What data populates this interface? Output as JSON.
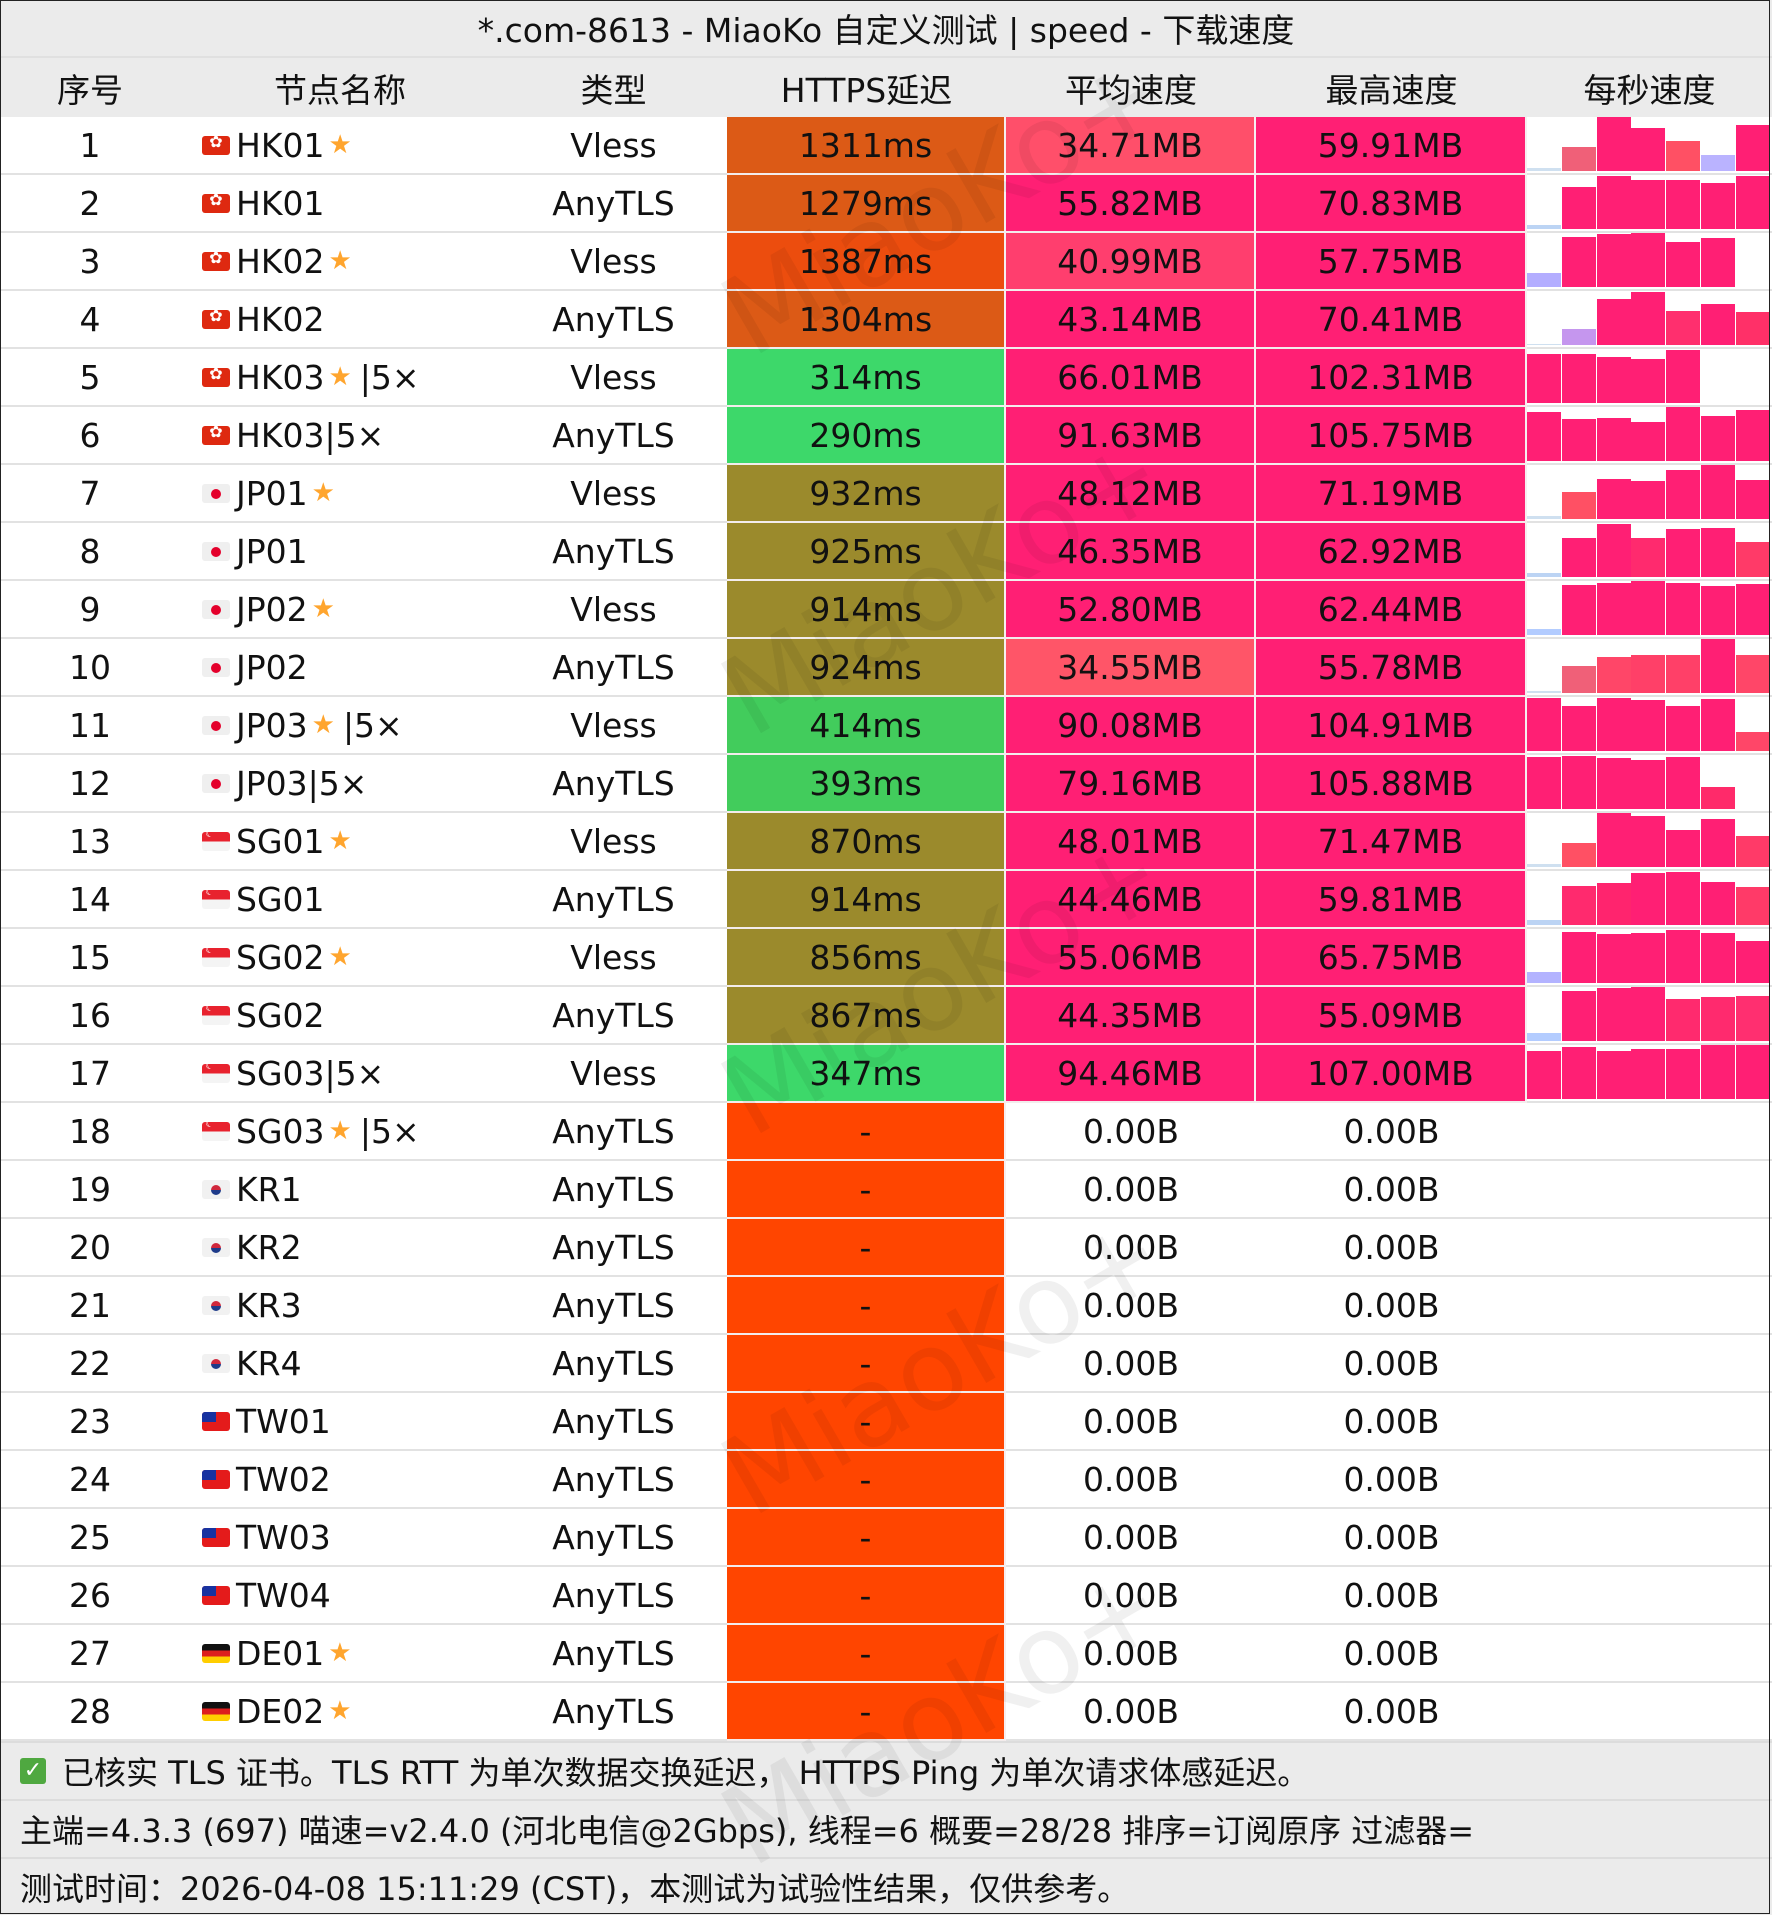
{
  "title": "*.com-8613 - MiaoKo 自定义测试 | speed - 下载速度",
  "columns": [
    "序号",
    "节点名称",
    "类型",
    "HTTPS延迟",
    "平均速度",
    "最高速度",
    "每秒速度"
  ],
  "colors": {
    "latency_very_high": "#dc5a16",
    "latency_highest": "#ec4d0e",
    "latency_medium": "#9b8a2c",
    "latency_low": "#3dd86a",
    "latency_low_alt": "#42cc5c",
    "latency_fail": "#ff4500",
    "speed_high": "#ff1f74",
    "speed_mid": "#ff4f6a",
    "spark_low": "#bab3ff",
    "spark_base": "#cfe0f0"
  },
  "rows": [
    {
      "idx": "1",
      "flag": "hk",
      "name": "HK01",
      "star": true,
      "suffix": "",
      "type": "Vless",
      "latency": "1311ms",
      "lat_color": "#dc5a16",
      "avg": "34.71MB",
      "avg_color": "#ff4f6a",
      "max": "59.91MB",
      "max_color": "#ff1f74",
      "spark": [
        [
          0.05,
          "#cfe0f0"
        ],
        [
          0.45,
          "#f06078"
        ],
        [
          1.0,
          "#ff1f74"
        ],
        [
          0.8,
          "#ff1f74"
        ],
        [
          0.55,
          "#ff5064"
        ],
        [
          0.3,
          "#bab3ff"
        ],
        [
          0.85,
          "#ff1f74"
        ]
      ]
    },
    {
      "idx": "2",
      "flag": "hk",
      "name": "HK01",
      "star": false,
      "suffix": "",
      "type": "AnyTLS",
      "latency": "1279ms",
      "lat_color": "#dc5a16",
      "avg": "55.82MB",
      "avg_color": "#ff1f74",
      "max": "70.83MB",
      "max_color": "#ff1f74",
      "spark": [
        [
          0.08,
          "#bcd4f4"
        ],
        [
          0.78,
          "#ff1f74"
        ],
        [
          0.98,
          "#ff1f74"
        ],
        [
          0.9,
          "#ff1f74"
        ],
        [
          0.9,
          "#ff1f74"
        ],
        [
          0.85,
          "#ff1f74"
        ],
        [
          0.98,
          "#ff1f74"
        ]
      ]
    },
    {
      "idx": "3",
      "flag": "hk",
      "name": "HK02",
      "star": true,
      "suffix": "",
      "type": "Vless",
      "latency": "1387ms",
      "lat_color": "#ec4d0e",
      "avg": "40.99MB",
      "avg_color": "#ff3e6e",
      "max": "57.75MB",
      "max_color": "#ff1f74",
      "spark": [
        [
          0.25,
          "#b3adff"
        ],
        [
          0.92,
          "#ff1f74"
        ],
        [
          0.98,
          "#ff1f74"
        ],
        [
          1.0,
          "#ff1f74"
        ],
        [
          0.84,
          "#ff1f74"
        ],
        [
          0.9,
          "#ff1f74"
        ],
        [
          0,
          "#ffffff"
        ]
      ]
    },
    {
      "idx": "4",
      "flag": "hk",
      "name": "HK02",
      "star": false,
      "suffix": "",
      "type": "AnyTLS",
      "latency": "1304ms",
      "lat_color": "#dc5a16",
      "avg": "43.14MB",
      "avg_color": "#ff1f74",
      "max": "70.41MB",
      "max_color": "#ff1f74",
      "spark": [
        [
          0.02,
          "#cfe0f0"
        ],
        [
          0.3,
          "#c596ee"
        ],
        [
          0.85,
          "#ff1f74"
        ],
        [
          0.98,
          "#ff1f74"
        ],
        [
          0.63,
          "#ff2f6e"
        ],
        [
          0.76,
          "#ff1f74"
        ],
        [
          0.62,
          "#ff3068"
        ]
      ]
    },
    {
      "idx": "5",
      "flag": "hk",
      "name": "HK03",
      "star": true,
      "suffix": "|5×",
      "type": "Vless",
      "latency": "314ms",
      "lat_color": "#3dd86a",
      "avg": "66.01MB",
      "avg_color": "#ff1f74",
      "max": "102.31MB",
      "max_color": "#ff1f74",
      "spark": [
        [
          0.9,
          "#ff1f74"
        ],
        [
          0.9,
          "#ff1f74"
        ],
        [
          0.86,
          "#ff1f74"
        ],
        [
          0.82,
          "#ff1f74"
        ],
        [
          0.98,
          "#ff1f74"
        ],
        [
          0,
          "#ffffff"
        ],
        [
          0,
          "#ffffff"
        ]
      ]
    },
    {
      "idx": "6",
      "flag": "hk",
      "name": "HK03",
      "star": false,
      "suffix": "|5×",
      "type": "AnyTLS",
      "latency": "290ms",
      "lat_color": "#3dd86a",
      "avg": "91.63MB",
      "avg_color": "#ff1f74",
      "max": "105.75MB",
      "max_color": "#ff1f74",
      "spark": [
        [
          0.9,
          "#ff1f74"
        ],
        [
          0.78,
          "#ff1f74"
        ],
        [
          0.8,
          "#ff1f74"
        ],
        [
          0.72,
          "#ff1f74"
        ],
        [
          1.0,
          "#ff1f74"
        ],
        [
          0.84,
          "#ff1f74"
        ],
        [
          0.94,
          "#ff1f74"
        ]
      ]
    },
    {
      "idx": "7",
      "flag": "jp",
      "name": "JP01",
      "star": true,
      "suffix": "",
      "type": "Vless",
      "latency": "932ms",
      "lat_color": "#9b8a2c",
      "avg": "48.12MB",
      "avg_color": "#ff1f74",
      "max": "71.19MB",
      "max_color": "#ff1f74",
      "spark": [
        [
          0.06,
          "#cfe0f0"
        ],
        [
          0.5,
          "#ff5064"
        ],
        [
          0.74,
          "#ff1f74"
        ],
        [
          0.7,
          "#ff1f74"
        ],
        [
          0.9,
          "#ff1f74"
        ],
        [
          1.0,
          "#ff1f74"
        ],
        [
          0.72,
          "#ff1f74"
        ]
      ]
    },
    {
      "idx": "8",
      "flag": "jp",
      "name": "JP01",
      "star": false,
      "suffix": "",
      "type": "AnyTLS",
      "latency": "925ms",
      "lat_color": "#9b8a2c",
      "avg": "46.35MB",
      "avg_color": "#ff1f74",
      "max": "62.92MB",
      "max_color": "#ff1f74",
      "spark": [
        [
          0.08,
          "#bcd4f4"
        ],
        [
          0.73,
          "#ff1f74"
        ],
        [
          0.98,
          "#ff1f74"
        ],
        [
          0.73,
          "#ff2a6e"
        ],
        [
          0.88,
          "#ff1f74"
        ],
        [
          0.9,
          "#ff1f74"
        ],
        [
          0.64,
          "#ff3a68"
        ]
      ]
    },
    {
      "idx": "9",
      "flag": "jp",
      "name": "JP02",
      "star": true,
      "suffix": "",
      "type": "Vless",
      "latency": "914ms",
      "lat_color": "#9b8a2c",
      "avg": "52.80MB",
      "avg_color": "#ff1f74",
      "max": "62.44MB",
      "max_color": "#ff1f74",
      "spark": [
        [
          0.12,
          "#b3ccff"
        ],
        [
          0.92,
          "#ff1f74"
        ],
        [
          0.97,
          "#ff1f74"
        ],
        [
          1.0,
          "#ff1f74"
        ],
        [
          0.96,
          "#ff1f74"
        ],
        [
          0.9,
          "#ff1f74"
        ],
        [
          0.95,
          "#ff1f74"
        ]
      ]
    },
    {
      "idx": "10",
      "flag": "jp",
      "name": "JP02",
      "star": false,
      "suffix": "",
      "type": "AnyTLS",
      "latency": "924ms",
      "lat_color": "#9b8a2c",
      "avg": "34.55MB",
      "avg_color": "#ff5568",
      "max": "55.78MB",
      "max_color": "#ff1f74",
      "spark": [
        [
          0.04,
          "#cfe0f0"
        ],
        [
          0.5,
          "#f06078"
        ],
        [
          0.67,
          "#ff4668"
        ],
        [
          0.7,
          "#ff4068"
        ],
        [
          0.7,
          "#ff4068"
        ],
        [
          1.0,
          "#ff1f74"
        ],
        [
          0.7,
          "#ff4668"
        ]
      ]
    },
    {
      "idx": "11",
      "flag": "jp",
      "name": "JP03",
      "star": true,
      "suffix": "|5×",
      "type": "Vless",
      "latency": "414ms",
      "lat_color": "#42cc5c",
      "avg": "90.08MB",
      "avg_color": "#ff1f74",
      "max": "104.91MB",
      "max_color": "#ff1f74",
      "spark": [
        [
          0.98,
          "#ff1f74"
        ],
        [
          0.84,
          "#ff1f74"
        ],
        [
          0.98,
          "#ff1f74"
        ],
        [
          0.95,
          "#ff1f74"
        ],
        [
          0.84,
          "#ff1f74"
        ],
        [
          0.96,
          "#ff1f74"
        ],
        [
          0.35,
          "#ff4668"
        ]
      ]
    },
    {
      "idx": "12",
      "flag": "jp",
      "name": "JP03",
      "star": false,
      "suffix": "|5×",
      "type": "AnyTLS",
      "latency": "393ms",
      "lat_color": "#42cc5c",
      "avg": "79.16MB",
      "avg_color": "#ff1f74",
      "max": "105.88MB",
      "max_color": "#ff1f74",
      "spark": [
        [
          0.97,
          "#ff1f74"
        ],
        [
          0.98,
          "#ff1f74"
        ],
        [
          0.94,
          "#ff1f74"
        ],
        [
          0.9,
          "#ff1f74"
        ],
        [
          0.97,
          "#ff1f74"
        ],
        [
          0.4,
          "#ff2a6a"
        ],
        [
          0,
          "#ffffff"
        ]
      ]
    },
    {
      "idx": "13",
      "flag": "sg",
      "name": "SG01",
      "star": true,
      "suffix": "",
      "type": "Vless",
      "latency": "870ms",
      "lat_color": "#9b8a2c",
      "avg": "48.01MB",
      "avg_color": "#ff1f74",
      "max": "71.47MB",
      "max_color": "#ff1f74",
      "spark": [
        [
          0.05,
          "#cfe0f0"
        ],
        [
          0.45,
          "#ff5064"
        ],
        [
          1.0,
          "#ff1f74"
        ],
        [
          0.95,
          "#ff1f74"
        ],
        [
          0.68,
          "#ff1f74"
        ],
        [
          0.88,
          "#ff1f74"
        ],
        [
          0.58,
          "#ff3a68"
        ]
      ]
    },
    {
      "idx": "14",
      "flag": "sg",
      "name": "SG01",
      "star": false,
      "suffix": "",
      "type": "AnyTLS",
      "latency": "914ms",
      "lat_color": "#9b8a2c",
      "avg": "44.46MB",
      "avg_color": "#ff1f74",
      "max": "59.81MB",
      "max_color": "#ff1f74",
      "spark": [
        [
          0.1,
          "#bcd4f4"
        ],
        [
          0.73,
          "#ff2a6e"
        ],
        [
          0.78,
          "#ff246e"
        ],
        [
          0.96,
          "#ff1f74"
        ],
        [
          0.98,
          "#ff1f74"
        ],
        [
          0.8,
          "#ff1f74"
        ],
        [
          0.7,
          "#ff3a68"
        ]
      ]
    },
    {
      "idx": "15",
      "flag": "sg",
      "name": "SG02",
      "star": true,
      "suffix": "",
      "type": "Vless",
      "latency": "856ms",
      "lat_color": "#9b8a2c",
      "avg": "55.06MB",
      "avg_color": "#ff1f74",
      "max": "65.75MB",
      "max_color": "#ff1f74",
      "spark": [
        [
          0.2,
          "#b3b3ff"
        ],
        [
          0.95,
          "#ff1f74"
        ],
        [
          0.9,
          "#ff1f74"
        ],
        [
          0.92,
          "#ff1f74"
        ],
        [
          0.98,
          "#ff1f74"
        ],
        [
          0.92,
          "#ff1f74"
        ],
        [
          0.78,
          "#ff1f74"
        ]
      ]
    },
    {
      "idx": "16",
      "flag": "sg",
      "name": "SG02",
      "star": false,
      "suffix": "",
      "type": "AnyTLS",
      "latency": "867ms",
      "lat_color": "#9b8a2c",
      "avg": "44.35MB",
      "avg_color": "#ff1f74",
      "max": "55.09MB",
      "max_color": "#ff1f74",
      "spark": [
        [
          0.14,
          "#b3ccff"
        ],
        [
          0.92,
          "#ff1f74"
        ],
        [
          0.98,
          "#ff1f74"
        ],
        [
          1.0,
          "#ff1f74"
        ],
        [
          0.77,
          "#ff2a6e"
        ],
        [
          0.82,
          "#ff2a6e"
        ],
        [
          0.84,
          "#ff2f70"
        ]
      ]
    },
    {
      "idx": "17",
      "flag": "sg",
      "name": "SG03",
      "star": false,
      "suffix": "|5×",
      "type": "Vless",
      "latency": "347ms",
      "lat_color": "#3dd86a",
      "avg": "94.46MB",
      "avg_color": "#ff1f74",
      "max": "107.00MB",
      "max_color": "#ff1f74",
      "spark": [
        [
          0.88,
          "#ff1f74"
        ],
        [
          0.97,
          "#ff1f74"
        ],
        [
          0.88,
          "#ff1f74"
        ],
        [
          0.92,
          "#ff1f74"
        ],
        [
          0.92,
          "#ff1f74"
        ],
        [
          1.0,
          "#ff1f74"
        ],
        [
          1.0,
          "#ff1f74"
        ]
      ]
    },
    {
      "idx": "18",
      "flag": "sg",
      "name": "SG03",
      "star": true,
      "suffix": "|5×",
      "type": "AnyTLS",
      "latency": "-",
      "lat_color": "#ff4500",
      "avg": "0.00B",
      "avg_color": "",
      "max": "0.00B",
      "max_color": "",
      "spark": []
    },
    {
      "idx": "19",
      "flag": "kr",
      "name": "KR1",
      "star": false,
      "suffix": "",
      "type": "AnyTLS",
      "latency": "-",
      "lat_color": "#ff4500",
      "avg": "0.00B",
      "avg_color": "",
      "max": "0.00B",
      "max_color": "",
      "spark": []
    },
    {
      "idx": "20",
      "flag": "kr",
      "name": "KR2",
      "star": false,
      "suffix": "",
      "type": "AnyTLS",
      "latency": "-",
      "lat_color": "#ff4500",
      "avg": "0.00B",
      "avg_color": "",
      "max": "0.00B",
      "max_color": "",
      "spark": []
    },
    {
      "idx": "21",
      "flag": "kr",
      "name": "KR3",
      "star": false,
      "suffix": "",
      "type": "AnyTLS",
      "latency": "-",
      "lat_color": "#ff4500",
      "avg": "0.00B",
      "avg_color": "",
      "max": "0.00B",
      "max_color": "",
      "spark": []
    },
    {
      "idx": "22",
      "flag": "kr",
      "name": "KR4",
      "star": false,
      "suffix": "",
      "type": "AnyTLS",
      "latency": "-",
      "lat_color": "#ff4500",
      "avg": "0.00B",
      "avg_color": "",
      "max": "0.00B",
      "max_color": "",
      "spark": []
    },
    {
      "idx": "23",
      "flag": "tw",
      "name": "TW01",
      "star": false,
      "suffix": "",
      "type": "AnyTLS",
      "latency": "-",
      "lat_color": "#ff4500",
      "avg": "0.00B",
      "avg_color": "",
      "max": "0.00B",
      "max_color": "",
      "spark": []
    },
    {
      "idx": "24",
      "flag": "tw",
      "name": "TW02",
      "star": false,
      "suffix": "",
      "type": "AnyTLS",
      "latency": "-",
      "lat_color": "#ff4500",
      "avg": "0.00B",
      "avg_color": "",
      "max": "0.00B",
      "max_color": "",
      "spark": []
    },
    {
      "idx": "25",
      "flag": "tw",
      "name": "TW03",
      "star": false,
      "suffix": "",
      "type": "AnyTLS",
      "latency": "-",
      "lat_color": "#ff4500",
      "avg": "0.00B",
      "avg_color": "",
      "max": "0.00B",
      "max_color": "",
      "spark": []
    },
    {
      "idx": "26",
      "flag": "tw",
      "name": "TW04",
      "star": false,
      "suffix": "",
      "type": "AnyTLS",
      "latency": "-",
      "lat_color": "#ff4500",
      "avg": "0.00B",
      "avg_color": "",
      "max": "0.00B",
      "max_color": "",
      "spark": []
    },
    {
      "idx": "27",
      "flag": "de",
      "name": "DE01",
      "star": true,
      "suffix": "",
      "type": "AnyTLS",
      "latency": "-",
      "lat_color": "#ff4500",
      "avg": "0.00B",
      "avg_color": "",
      "max": "0.00B",
      "max_color": "",
      "spark": []
    },
    {
      "idx": "28",
      "flag": "de",
      "name": "DE02",
      "star": true,
      "suffix": "",
      "type": "AnyTLS",
      "latency": "-",
      "lat_color": "#ff4500",
      "avg": "0.00B",
      "avg_color": "",
      "max": "0.00B",
      "max_color": "",
      "spark": []
    }
  ],
  "star_glyph": "★",
  "footer": {
    "check_glyph": "✓",
    "line1": "已核实 TLS 证书。TLS RTT 为单次数据交换延迟， HTTPS Ping 为单次请求体感延迟。",
    "line2": "主端=4.3.3 (697) 喵速=v2.4.0 (河北电信@2Gbps), 线程=6 概要=28/28 排序=订阅原序 过滤器=",
    "line3": "测试时间：2026-04-08 15:11:29 (CST)，本测试为试验性结果，仅供参考。"
  },
  "watermark": "MiaoKo+"
}
